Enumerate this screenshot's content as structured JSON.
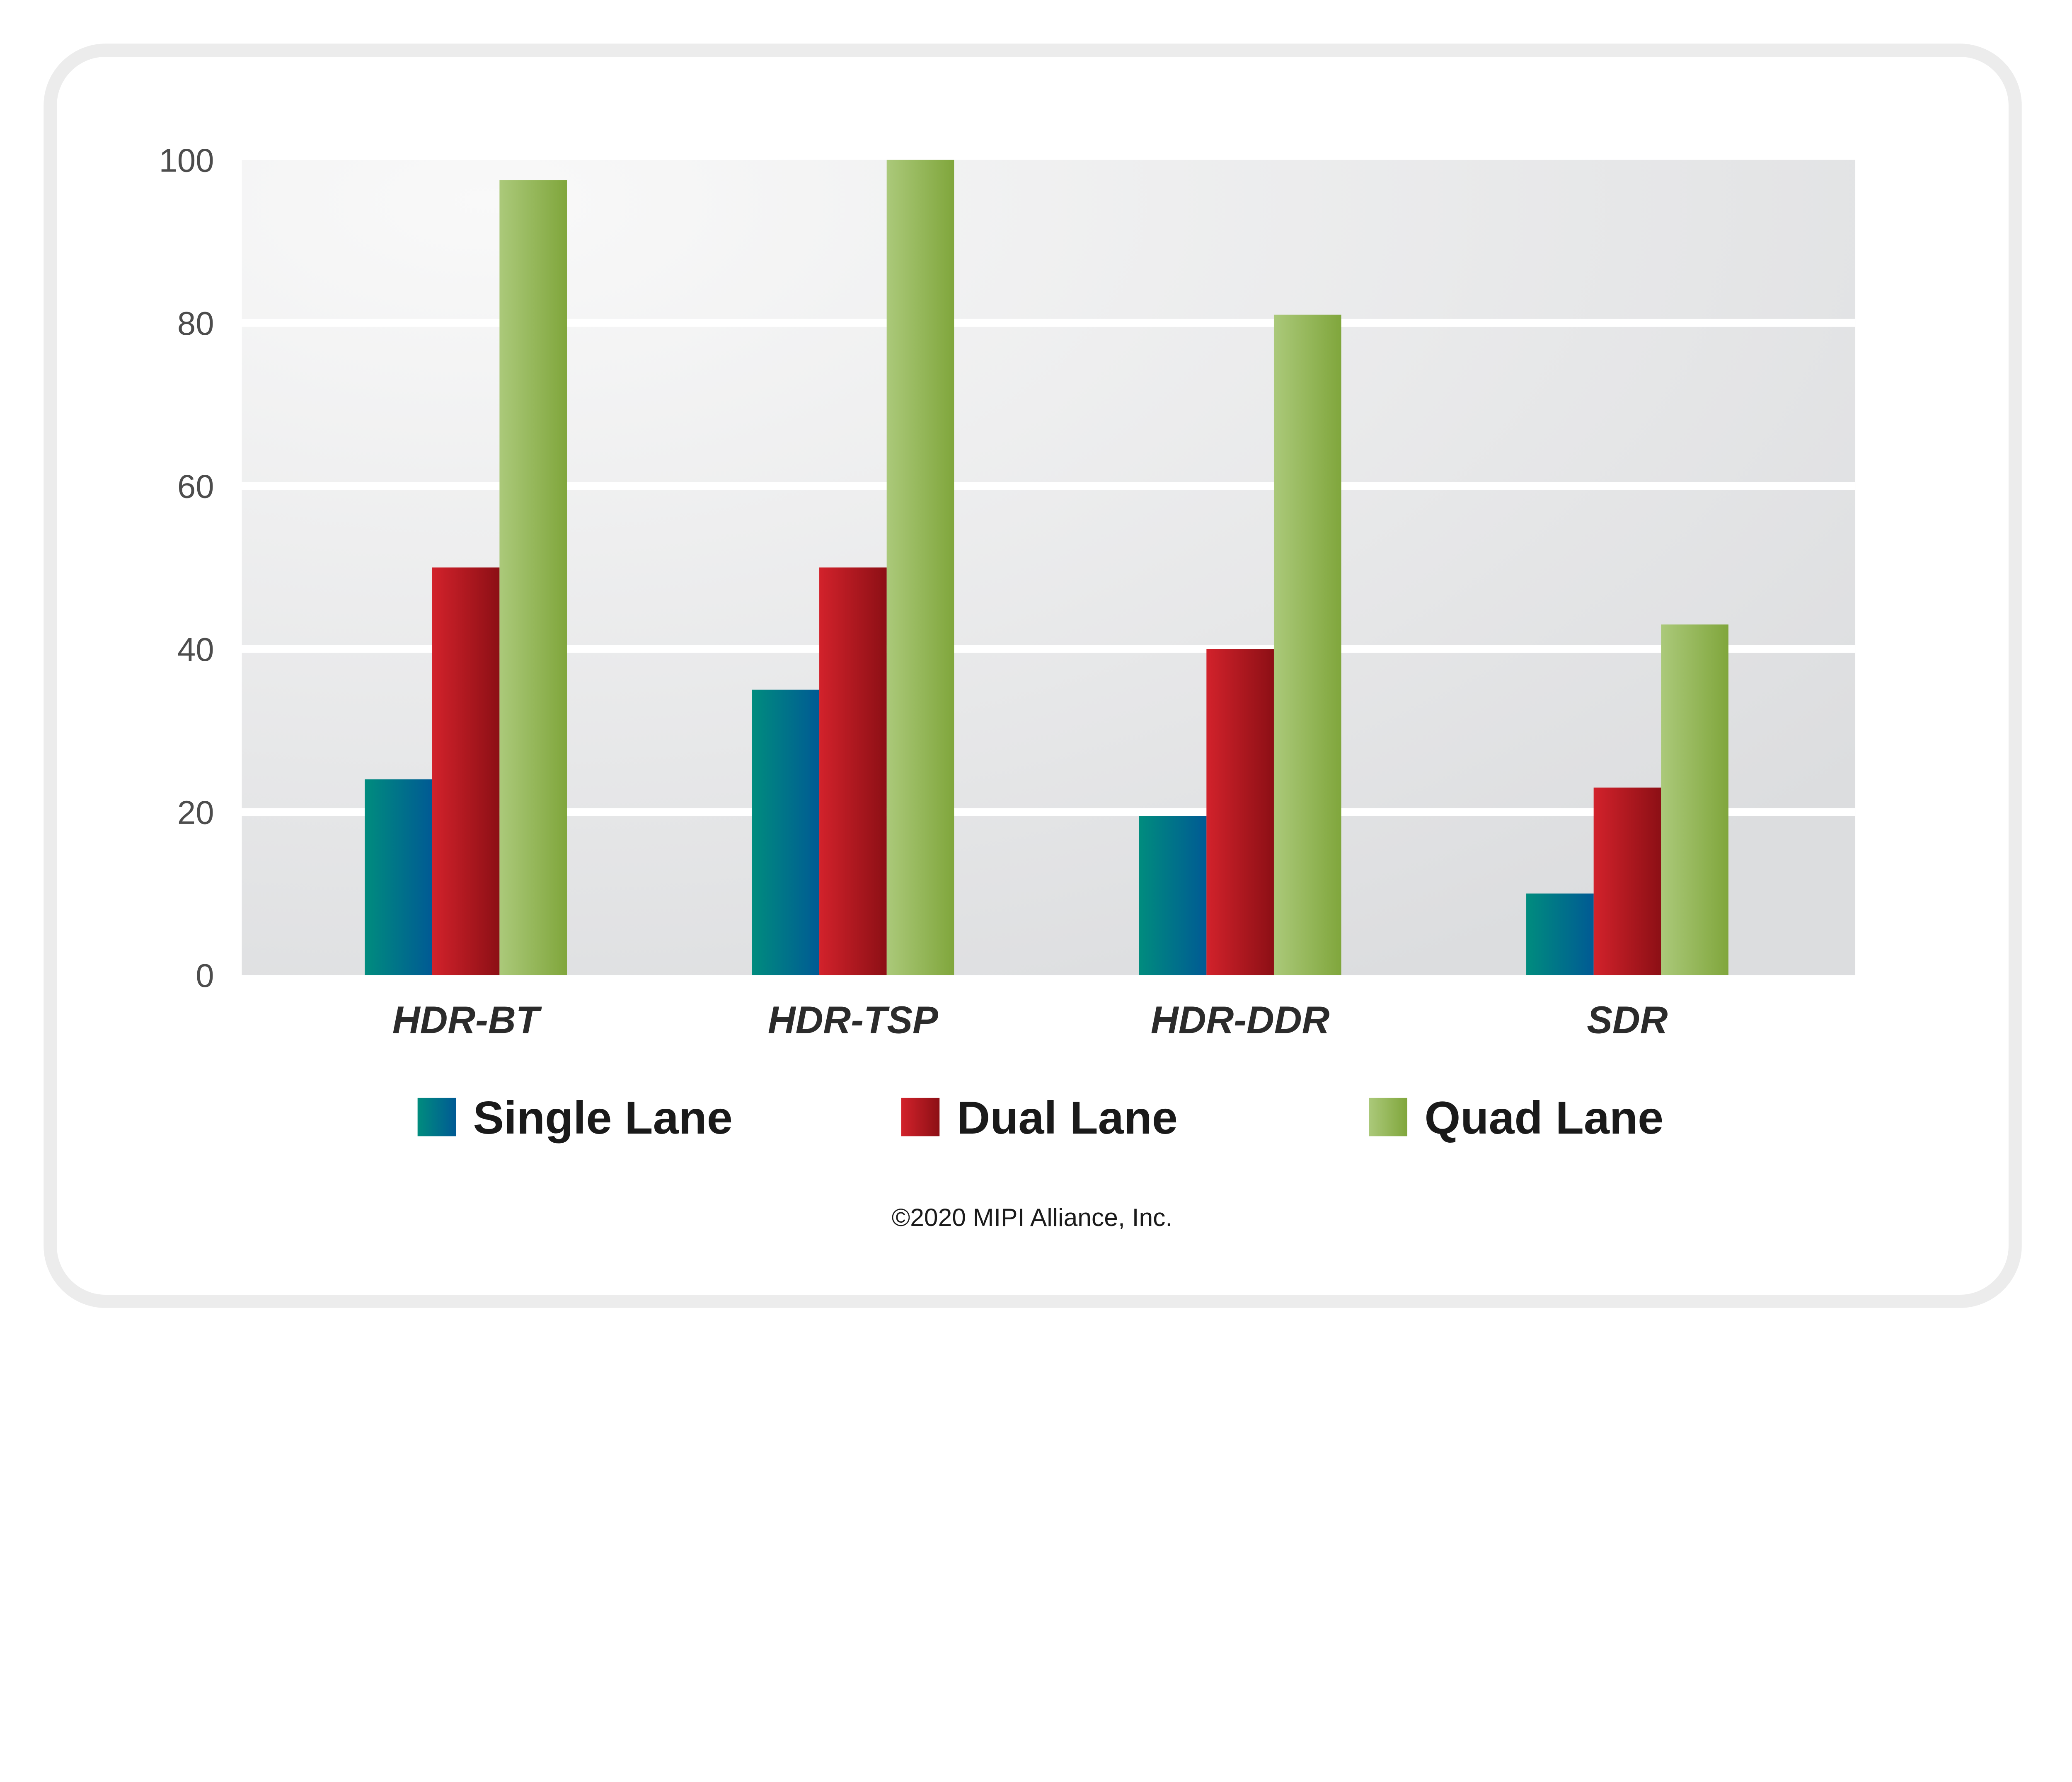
{
  "chart_data": {
    "type": "bar",
    "categories": [
      "HDR-BT",
      "HDR-TSP",
      "HDR-DDR",
      "SDR"
    ],
    "series": [
      {
        "name": "Single Lane",
        "values": [
          24,
          35,
          19.5,
          10
        ],
        "colors": [
          "#008c7e",
          "#005a94"
        ]
      },
      {
        "name": "Dual Lane",
        "values": [
          50,
          50,
          40,
          23
        ],
        "colors": [
          "#d2222b",
          "#8c0f15"
        ]
      },
      {
        "name": "Quad Lane",
        "values": [
          97.5,
          100,
          81,
          43
        ],
        "colors": [
          "#abc97a",
          "#80a63c"
        ]
      }
    ],
    "ylim": [
      0,
      100
    ],
    "yticks": [
      "0",
      "20",
      "40",
      "60",
      "80",
      "100"
    ],
    "grid": true,
    "legend": "bottom",
    "title": "",
    "xlabel": "",
    "ylabel": ""
  },
  "footer": {
    "copyright": "©2020 MIPI Alliance, Inc."
  }
}
